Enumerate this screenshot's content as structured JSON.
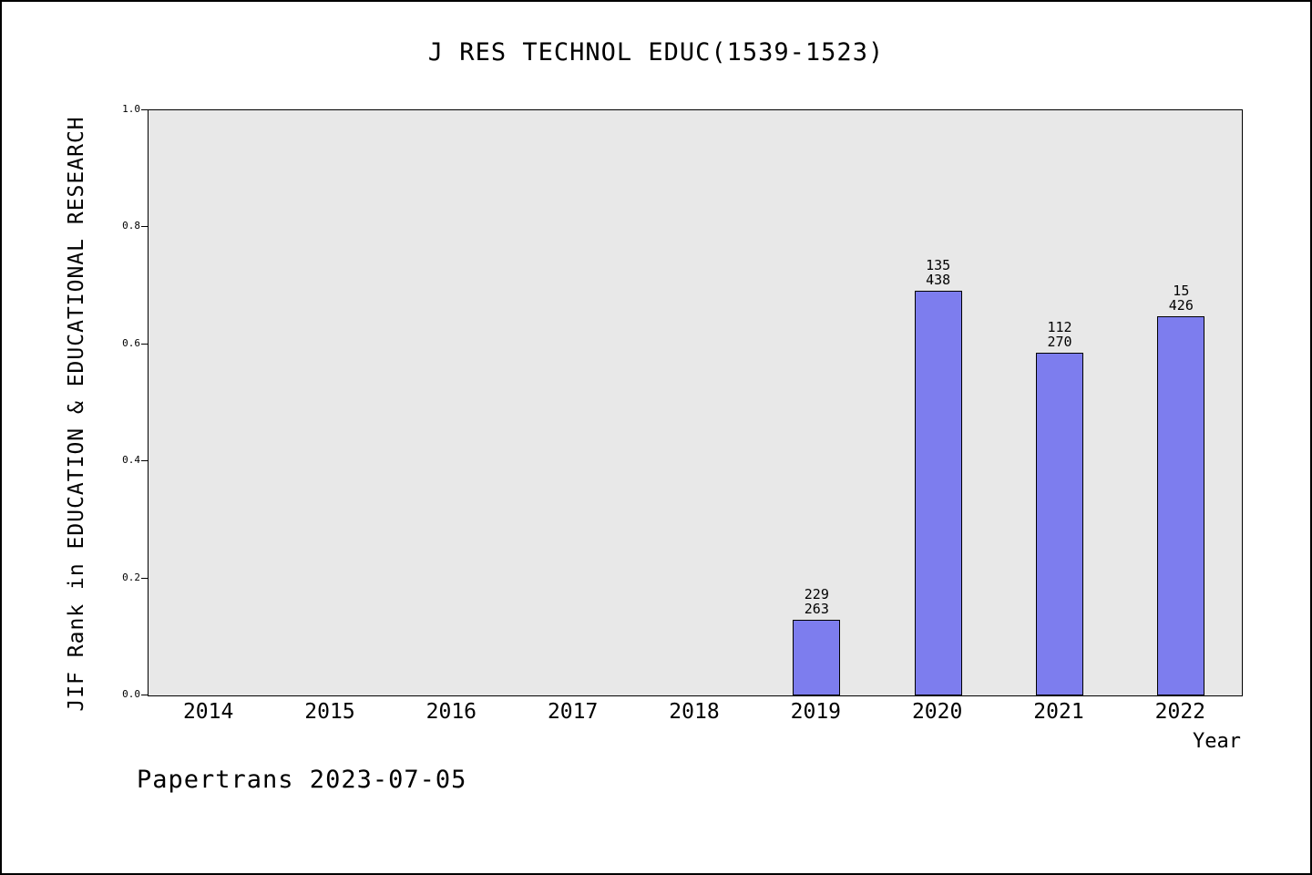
{
  "footer": "Papertrans 2023-07-05",
  "chart_data": {
    "type": "bar",
    "title": "J RES TECHNOL EDUC(1539-1523)",
    "xlabel": "Year",
    "ylabel": "JIF Rank in EDUCATION & EDUCATIONAL RESEARCH",
    "categories": [
      "2014",
      "2015",
      "2016",
      "2017",
      "2018",
      "2019",
      "2020",
      "2021",
      "2022"
    ],
    "bars": [
      {
        "category": "2019",
        "value": 0.129,
        "label_top": "229",
        "label_bottom": "263"
      },
      {
        "category": "2020",
        "value": 0.692,
        "label_top": "135",
        "label_bottom": "438"
      },
      {
        "category": "2021",
        "value": 0.585,
        "label_top": "112",
        "label_bottom": "270"
      },
      {
        "category": "2022",
        "value": 0.648,
        "label_top": "15",
        "label_bottom": "426"
      }
    ],
    "ylim": [
      0,
      1
    ],
    "yticks": [
      "0.0",
      "0.2",
      "0.4",
      "0.6",
      "0.8",
      "1.0"
    ],
    "grid": false,
    "legend_position": "none",
    "bar_color": "#7d7dee",
    "bar_edge_color": "#000000",
    "plot_background": "#e8e8e8"
  }
}
